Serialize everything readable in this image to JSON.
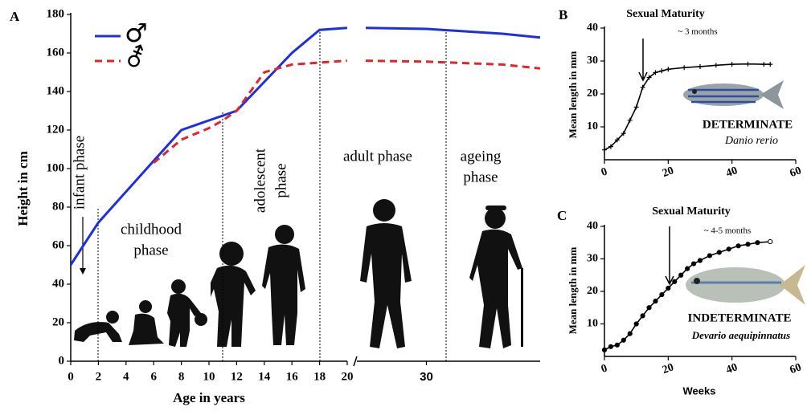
{
  "chart_data": [
    {
      "type": "line",
      "panel": "A",
      "ylabel": "Height in cm",
      "xlabel": "Age in years",
      "x": [
        0,
        2,
        6,
        8,
        10,
        11,
        12,
        14,
        16,
        18,
        20,
        21,
        22,
        30,
        40,
        45
      ],
      "series": [
        {
          "name": "♂",
          "color": "#1f2fe0",
          "dash": false,
          "values": [
            50,
            72,
            104,
            120,
            125,
            127.5,
            130,
            145,
            160,
            172,
            173,
            null,
            173,
            172.5,
            170,
            168
          ]
        },
        {
          "name": "⚦",
          "color": "#e0262a",
          "dash": true,
          "values": [
            null,
            null,
            103,
            115,
            121,
            125,
            130,
            150,
            154,
            155,
            156,
            null,
            156,
            155.5,
            154,
            152
          ]
        }
      ],
      "xlim": [
        0,
        45
      ],
      "x_break": [
        20,
        22
      ],
      "xticks": [
        0,
        2,
        4,
        6,
        8,
        10,
        12,
        14,
        16,
        18,
        20,
        30
      ],
      "ylim": [
        0,
        180
      ],
      "yticks": [
        0,
        20,
        40,
        60,
        80,
        100,
        120,
        140,
        160,
        180
      ],
      "phases": [
        [
          "infant phase"
        ],
        [
          "childhood",
          "phase"
        ],
        [
          "adolescent",
          "phase"
        ],
        [
          "adult phase"
        ],
        [
          "ageing",
          "phase"
        ]
      ]
    },
    {
      "type": "line",
      "panel": "B",
      "ylabel": "Mean length in mm",
      "marker": "plus",
      "x": [
        0,
        2,
        4,
        6,
        8,
        10,
        12,
        14,
        16,
        18,
        20,
        25,
        30,
        35,
        40,
        45,
        50,
        52
      ],
      "values": [
        3,
        4,
        6,
        8,
        12,
        16,
        22,
        25,
        26.5,
        27,
        27.5,
        28,
        28.3,
        28.7,
        29,
        29.1,
        29,
        29
      ],
      "xlim": [
        0,
        60
      ],
      "xticks": [
        0,
        20,
        40,
        60
      ],
      "ylim": [
        0,
        40
      ],
      "yticks": [
        10,
        20,
        30,
        40
      ],
      "annotations": [
        "Sexual Maturity",
        "~ 3 months",
        "DETERMINATE",
        "Danio rerio"
      ]
    },
    {
      "type": "line",
      "panel": "C",
      "ylabel": "Mean length in mm",
      "xlabel": "Weeks",
      "marker": "circle",
      "x": [
        0,
        2,
        4,
        6,
        8,
        10,
        12,
        14,
        16,
        18,
        20,
        22,
        24,
        26,
        28,
        30,
        33,
        36,
        39,
        42,
        45,
        48,
        52
      ],
      "values": [
        2,
        3,
        3.5,
        5,
        7,
        10,
        12.5,
        15,
        17,
        19,
        21,
        23,
        25,
        27,
        28.5,
        29.5,
        31,
        32,
        33,
        34,
        34.5,
        35,
        35.3
      ],
      "xlim": [
        0,
        60
      ],
      "xticks": [
        0,
        20,
        40,
        60
      ],
      "ylim": [
        0,
        40
      ],
      "yticks": [
        10,
        20,
        30,
        40
      ],
      "annotations": [
        "Sexual Maturity",
        "~ 4-5 months",
        "INDETERMINATE",
        "Devario aequipinnatus"
      ]
    }
  ]
}
